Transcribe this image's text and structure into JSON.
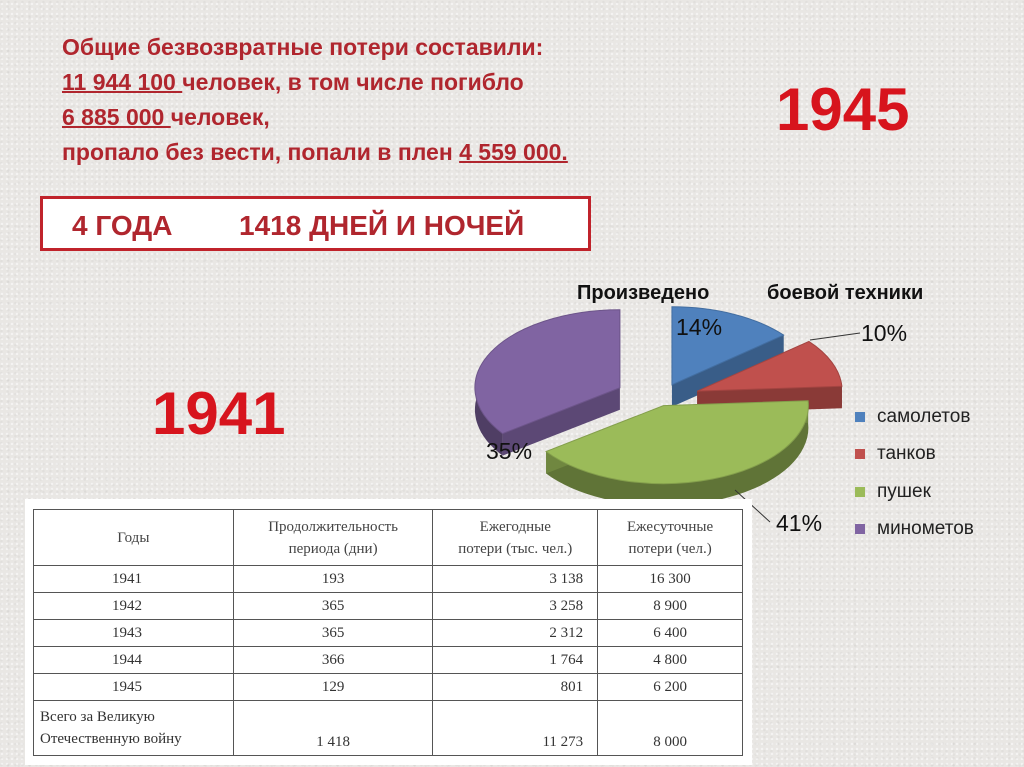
{
  "headline": {
    "line1": "Общие безвозвратные потери составили:",
    "line2_num": "11 944 100 ",
    "line2_rest": "человек, в том числе погибло",
    "line3_num": "6 885 000 ",
    "line3_rest": "человек,",
    "line4_text": "пропало без вести, попали в плен ",
    "line4_num": "4 559 000."
  },
  "years": {
    "end": "1945",
    "start": "1941"
  },
  "period": {
    "years": "4 ГОДА",
    "days": "1418 ДНЕЙ И НОЧЕЙ"
  },
  "chart_data": {
    "type": "pie",
    "title_parts": [
      "Произведено",
      "боевой техники"
    ],
    "slices": [
      {
        "name": "самолетов",
        "value": 14,
        "label": "14%",
        "color": "#4f81bd"
      },
      {
        "name": "танков",
        "value": 10,
        "label": "10%",
        "color": "#c0504d"
      },
      {
        "name": "пушек",
        "value": 41,
        "label": "41%",
        "color": "#9bbb59"
      },
      {
        "name": "минометов",
        "value": 35,
        "label": "35%",
        "color": "#8064a2"
      }
    ],
    "legend_position": "right"
  },
  "table": {
    "headers": [
      "Годы",
      "Продолжительность периода (дни)",
      "Ежегодные потери (тыс. чел.)",
      "Ежесуточные потери (чел.)"
    ],
    "header_lines": [
      [
        "Годы"
      ],
      [
        "Продолжительность",
        "периода (дни)"
      ],
      [
        "Ежегодные",
        "потери (тыс. чел.)"
      ],
      [
        "Ежесуточные",
        "потери (чел.)"
      ]
    ],
    "rows": [
      [
        "1941",
        "193",
        "3 138",
        "16 300"
      ],
      [
        "1942",
        "365",
        "3 258",
        "8 900"
      ],
      [
        "1943",
        "365",
        "2 312",
        "6 400"
      ],
      [
        "1944",
        "366",
        "1 764",
        "4 800"
      ],
      [
        "1945",
        "129",
        "801",
        "6 200"
      ]
    ],
    "total": {
      "label_lines": [
        "Всего за Великую",
        "Отечественную войну"
      ],
      "values": [
        "1 418",
        "11 273",
        "8 000"
      ]
    }
  }
}
